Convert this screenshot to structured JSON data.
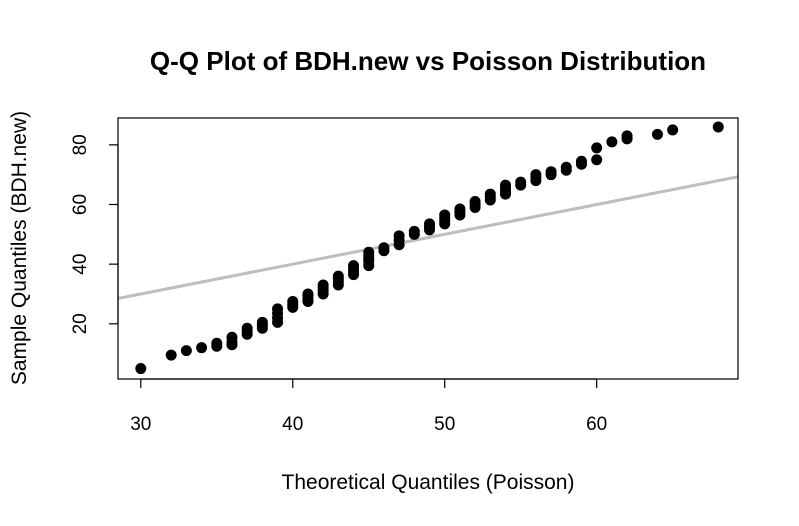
{
  "chart_data": {
    "type": "scatter",
    "title": "Q-Q Plot of BDH.new vs Poisson Distribution",
    "xlabel": "Theoretical Quantiles (Poisson)",
    "ylabel": "Sample Quantiles (BDH.new)",
    "xlim": [
      28.5,
      69.3
    ],
    "ylim": [
      1.5,
      89
    ],
    "xticks": [
      30,
      40,
      50,
      60
    ],
    "yticks": [
      20,
      40,
      60,
      80
    ],
    "point_color": "#000000",
    "points": [
      [
        30,
        5
      ],
      [
        32,
        9.5
      ],
      [
        33,
        11
      ],
      [
        34,
        12
      ],
      [
        35,
        12.5
      ],
      [
        35,
        13.5
      ],
      [
        36,
        13
      ],
      [
        36,
        14
      ],
      [
        36,
        15.5
      ],
      [
        37,
        16.5
      ],
      [
        37,
        17.5
      ],
      [
        37,
        18.5
      ],
      [
        38,
        18.5
      ],
      [
        38,
        19.5
      ],
      [
        38,
        20.5
      ],
      [
        39,
        20.5
      ],
      [
        39,
        22
      ],
      [
        39,
        23.5
      ],
      [
        39,
        25
      ],
      [
        40,
        25.5
      ],
      [
        40,
        26.5
      ],
      [
        40,
        27.5
      ],
      [
        41,
        27.5
      ],
      [
        41,
        28.5
      ],
      [
        41,
        29.5
      ],
      [
        41,
        30
      ],
      [
        42,
        30
      ],
      [
        42,
        31
      ],
      [
        42,
        32
      ],
      [
        42,
        33
      ],
      [
        43,
        33
      ],
      [
        43,
        34
      ],
      [
        43,
        35
      ],
      [
        43,
        36
      ],
      [
        44,
        36.5
      ],
      [
        44,
        37.5
      ],
      [
        44,
        38.5
      ],
      [
        44,
        39.5
      ],
      [
        45,
        39.5
      ],
      [
        45,
        41
      ],
      [
        45,
        42
      ],
      [
        45,
        43
      ],
      [
        45,
        44
      ],
      [
        46,
        44.5
      ],
      [
        46,
        45.5
      ],
      [
        47,
        46.5
      ],
      [
        47,
        48
      ],
      [
        47,
        49.5
      ],
      [
        48,
        50
      ],
      [
        48,
        51
      ],
      [
        49,
        51.5
      ],
      [
        49,
        52.5
      ],
      [
        49,
        53.5
      ],
      [
        50,
        53.5
      ],
      [
        50,
        54.5
      ],
      [
        50,
        55.5
      ],
      [
        50,
        56.5
      ],
      [
        51,
        56.5
      ],
      [
        51,
        57.5
      ],
      [
        51,
        58.5
      ],
      [
        52,
        59
      ],
      [
        52,
        60
      ],
      [
        52,
        61
      ],
      [
        53,
        61.5
      ],
      [
        53,
        62.5
      ],
      [
        53,
        63.5
      ],
      [
        54,
        63.5
      ],
      [
        54,
        64.5
      ],
      [
        54,
        65.5
      ],
      [
        54,
        66.5
      ],
      [
        55,
        66.5
      ],
      [
        55,
        67.5
      ],
      [
        56,
        68
      ],
      [
        56,
        69
      ],
      [
        56,
        70
      ],
      [
        57,
        70
      ],
      [
        57,
        71
      ],
      [
        58,
        71.5
      ],
      [
        58,
        72.5
      ],
      [
        59,
        73.5
      ],
      [
        59,
        74.5
      ],
      [
        60,
        75
      ],
      [
        60,
        79
      ],
      [
        61,
        81
      ],
      [
        62,
        82
      ],
      [
        62,
        83
      ],
      [
        64,
        83.5
      ],
      [
        65,
        85
      ],
      [
        68,
        86
      ]
    ],
    "reference_line": {
      "slope": 1,
      "intercept": 0,
      "color": "#bebebe"
    }
  }
}
